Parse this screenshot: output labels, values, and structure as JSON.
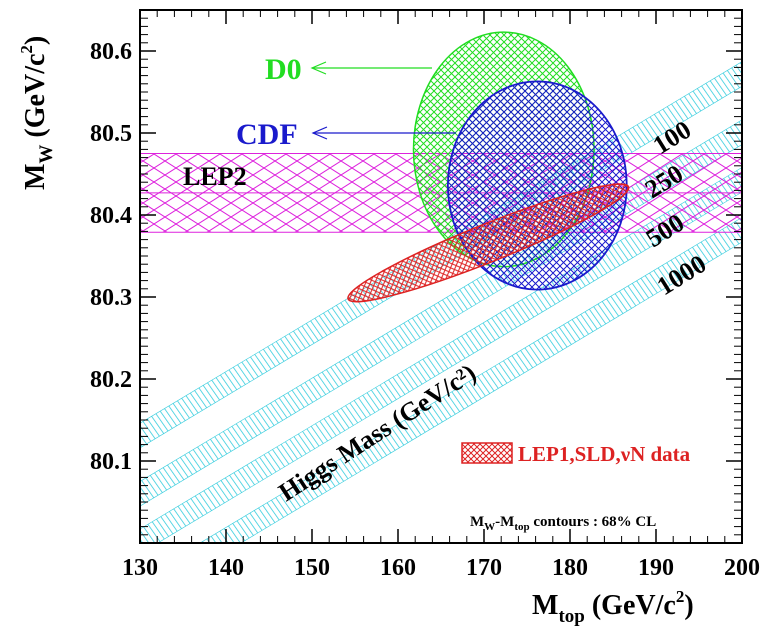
{
  "chart_data": {
    "type": "scatter",
    "title": "",
    "xlabel": {
      "main": "M",
      "sub": "top",
      "unit_open": " (GeV/c",
      "sup": "2",
      "unit_close": ")"
    },
    "ylabel": {
      "main": "M",
      "sub": "W",
      "unit_open": " (GeV/c",
      "sup": "2",
      "unit_close": ")"
    },
    "xlim": [
      130,
      200
    ],
    "ylim": [
      80.0,
      80.65
    ],
    "x_ticks": [
      "130",
      "140",
      "150",
      "160",
      "170",
      "180",
      "190",
      "200"
    ],
    "x_tick_values": [
      130,
      140,
      150,
      160,
      170,
      180,
      190,
      200
    ],
    "y_ticks": [
      "80.1",
      "80.2",
      "80.3",
      "80.4",
      "80.5",
      "80.6"
    ],
    "y_tick_values": [
      80.1,
      80.2,
      80.3,
      80.4,
      80.5,
      80.6
    ],
    "grid": false,
    "colors": {
      "d0": "#22dd22",
      "cdf": "#1a1acc",
      "lep1": "#dd2222",
      "lep2": "#dd22dd",
      "higgs": "#33ccdd"
    },
    "contours": [
      {
        "name": "D0",
        "label": "D0",
        "center": [
          172.3,
          80.48
        ],
        "radius_x": 10.5,
        "radius_y": 0.143,
        "rotation_deg": 0
      },
      {
        "name": "CDF",
        "label": "CDF",
        "center": [
          176.2,
          80.436
        ],
        "radius_x": 10.4,
        "radius_y": 0.127,
        "rotation_deg": 0
      },
      {
        "name": "LEP1,SLD,νN data",
        "label": "LEP1,SLD,νN data",
        "center": [
          170.5,
          80.366
        ],
        "radius_x": 16.3,
        "radius_y": 0.023,
        "slope_per_gev": 0.0042
      }
    ],
    "lep2_band": {
      "label": "LEP2",
      "center": 80.427,
      "halfwidth": 0.048
    },
    "higgs_bands": {
      "axis_label": "Higgs Mass (GeV/c²)",
      "slope_per_gev": 0.0063,
      "band_halfwidth": 0.015,
      "series": [
        {
          "name": "100",
          "label": "100",
          "y_at_130": 80.131
        },
        {
          "name": "250",
          "label": "250",
          "y_at_130": 80.06
        },
        {
          "name": "500",
          "label": "500",
          "y_at_130": 80.002
        },
        {
          "name": "1000",
          "label": "1000",
          "y_at_130": 79.941
        }
      ]
    },
    "annotation": {
      "main": "M",
      "sub1": "W",
      "mid": "-M",
      "sub2": "top",
      "rest": " contours : 68% CL"
    }
  }
}
